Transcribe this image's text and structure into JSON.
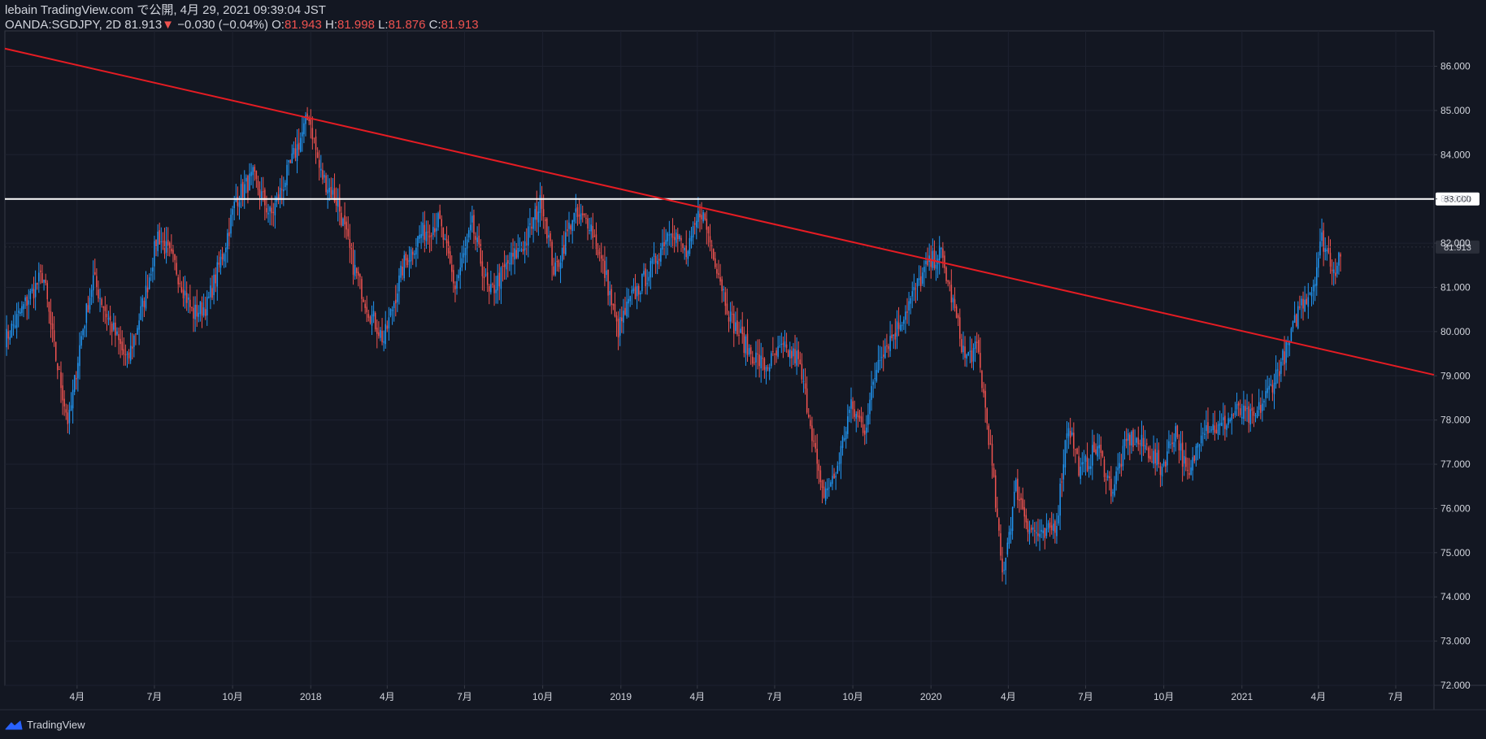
{
  "header": {
    "line1": "lebain TradingView.com で公開, 4月 29, 2021 09:39:04 JST",
    "symbol": "OANDA:SGDJPY, 2D",
    "last": "81.913",
    "change_arrow": "▼",
    "change": "−0.030 (−0.04%)",
    "o_label": "O:",
    "o_value": "81.943",
    "h_label": "H:",
    "h_value": "81.998",
    "l_label": "L:",
    "l_value": "81.876",
    "c_label": "C:",
    "c_value": "81.913"
  },
  "footer": {
    "brand": "TradingView",
    "logo_icon": "tradingview-logo-icon"
  },
  "colors": {
    "background": "#131722",
    "up": "#2196f3",
    "down": "#ef5350",
    "trendline": "#e51c23",
    "hline": "#ffffff",
    "axis_text": "#d1d4dc",
    "grid": "#1e2230"
  },
  "chart_data": {
    "type": "candlestick",
    "ylim": [
      72.0,
      86.8
    ],
    "y_ticks": [
      "72.000",
      "73.000",
      "74.000",
      "75.000",
      "76.000",
      "77.000",
      "78.000",
      "79.000",
      "80.000",
      "81.000",
      "82.000",
      "83.000",
      "84.000",
      "85.000",
      "86.000"
    ],
    "x_range": [
      "2017-01-06",
      "2021-08-15"
    ],
    "x_ticks": [
      {
        "label": "4月",
        "date": "2017-04-01"
      },
      {
        "label": "7月",
        "date": "2017-07-01"
      },
      {
        "label": "10月",
        "date": "2017-10-01"
      },
      {
        "label": "2018",
        "date": "2018-01-01"
      },
      {
        "label": "4月",
        "date": "2018-04-01"
      },
      {
        "label": "7月",
        "date": "2018-07-01"
      },
      {
        "label": "10月",
        "date": "2018-10-01"
      },
      {
        "label": "2019",
        "date": "2019-01-01"
      },
      {
        "label": "4月",
        "date": "2019-04-01"
      },
      {
        "label": "7月",
        "date": "2019-07-01"
      },
      {
        "label": "10月",
        "date": "2019-10-01"
      },
      {
        "label": "2020",
        "date": "2020-01-01"
      },
      {
        "label": "4月",
        "date": "2020-04-01"
      },
      {
        "label": "7月",
        "date": "2020-07-01"
      },
      {
        "label": "10月",
        "date": "2020-10-01"
      },
      {
        "label": "2021",
        "date": "2021-01-01"
      },
      {
        "label": "4月",
        "date": "2021-04-01"
      },
      {
        "label": "7月",
        "date": "2021-07-01"
      }
    ],
    "price_path": [
      [
        "2017-01-06",
        79.8
      ],
      [
        "2017-02-01",
        80.7
      ],
      [
        "2017-02-20",
        81.3
      ],
      [
        "2017-03-05",
        79.6
      ],
      [
        "2017-03-22",
        77.9
      ],
      [
        "2017-04-05",
        79.8
      ],
      [
        "2017-04-20",
        81.2
      ],
      [
        "2017-05-10",
        80.2
      ],
      [
        "2017-05-30",
        79.3
      ],
      [
        "2017-06-20",
        80.8
      ],
      [
        "2017-07-05",
        82.2
      ],
      [
        "2017-07-25",
        81.5
      ],
      [
        "2017-08-15",
        80.4
      ],
      [
        "2017-09-01",
        80.6
      ],
      [
        "2017-09-20",
        81.8
      ],
      [
        "2017-10-05",
        83.0
      ],
      [
        "2017-10-25",
        83.5
      ],
      [
        "2017-11-15",
        82.6
      ],
      [
        "2017-12-05",
        83.6
      ],
      [
        "2017-12-30",
        84.9
      ],
      [
        "2018-01-12",
        83.6
      ],
      [
        "2018-02-02",
        82.9
      ],
      [
        "2018-02-20",
        81.5
      ],
      [
        "2018-03-10",
        80.5
      ],
      [
        "2018-03-28",
        79.8
      ],
      [
        "2018-04-20",
        81.5
      ],
      [
        "2018-05-10",
        82.2
      ],
      [
        "2018-06-01",
        82.5
      ],
      [
        "2018-06-20",
        81.0
      ],
      [
        "2018-07-10",
        82.4
      ],
      [
        "2018-07-30",
        80.8
      ],
      [
        "2018-08-20",
        81.5
      ],
      [
        "2018-09-10",
        82.0
      ],
      [
        "2018-09-30",
        83.0
      ],
      [
        "2018-10-15",
        81.3
      ],
      [
        "2018-11-05",
        82.6
      ],
      [
        "2018-11-25",
        82.5
      ],
      [
        "2018-12-15",
        81.2
      ],
      [
        "2018-12-28",
        80.0
      ],
      [
        "2019-01-12",
        80.7
      ],
      [
        "2019-02-05",
        81.4
      ],
      [
        "2019-03-01",
        82.4
      ],
      [
        "2019-03-20",
        81.7
      ],
      [
        "2019-04-05",
        82.8
      ],
      [
        "2019-04-20",
        81.8
      ],
      [
        "2019-05-10",
        80.3
      ],
      [
        "2019-05-30",
        79.6
      ],
      [
        "2019-06-20",
        79.2
      ],
      [
        "2019-07-10",
        79.6
      ],
      [
        "2019-07-28",
        79.4
      ],
      [
        "2019-08-12",
        78.0
      ],
      [
        "2019-08-25",
        76.3
      ],
      [
        "2019-09-10",
        76.7
      ],
      [
        "2019-09-28",
        78.3
      ],
      [
        "2019-10-15",
        77.8
      ],
      [
        "2019-11-01",
        79.5
      ],
      [
        "2019-11-20",
        80.0
      ],
      [
        "2019-12-10",
        80.8
      ],
      [
        "2019-12-25",
        81.4
      ],
      [
        "2020-01-12",
        81.8
      ],
      [
        "2020-01-25",
        80.8
      ],
      [
        "2020-02-10",
        79.4
      ],
      [
        "2020-02-25",
        79.6
      ],
      [
        "2020-03-10",
        77.5
      ],
      [
        "2020-03-25",
        74.5
      ],
      [
        "2020-04-10",
        76.5
      ],
      [
        "2020-04-25",
        75.6
      ],
      [
        "2020-05-12",
        75.3
      ],
      [
        "2020-05-28",
        75.7
      ],
      [
        "2020-06-10",
        78.0
      ],
      [
        "2020-06-25",
        76.8
      ],
      [
        "2020-07-15",
        77.4
      ],
      [
        "2020-08-01",
        76.4
      ],
      [
        "2020-08-20",
        77.6
      ],
      [
        "2020-09-10",
        77.4
      ],
      [
        "2020-09-28",
        76.9
      ],
      [
        "2020-10-15",
        77.8
      ],
      [
        "2020-10-30",
        76.6
      ],
      [
        "2020-11-15",
        77.9
      ],
      [
        "2020-12-05",
        77.8
      ],
      [
        "2020-12-25",
        78.2
      ],
      [
        "2021-01-15",
        78.0
      ],
      [
        "2021-02-05",
        78.8
      ],
      [
        "2021-02-25",
        79.7
      ],
      [
        "2021-03-10",
        80.6
      ],
      [
        "2021-03-25",
        81.0
      ],
      [
        "2021-04-05",
        82.1
      ],
      [
        "2021-04-20",
        81.4
      ],
      [
        "2021-04-28",
        81.9
      ]
    ],
    "horizontal_line": {
      "price": 83.0,
      "label": "83.000"
    },
    "last_price": {
      "price": 81.913,
      "label": "81.913"
    },
    "trendline": {
      "p1": [
        "2017-01-06",
        86.4
      ],
      "p2": [
        "2021-04-28",
        79.5
      ]
    }
  }
}
